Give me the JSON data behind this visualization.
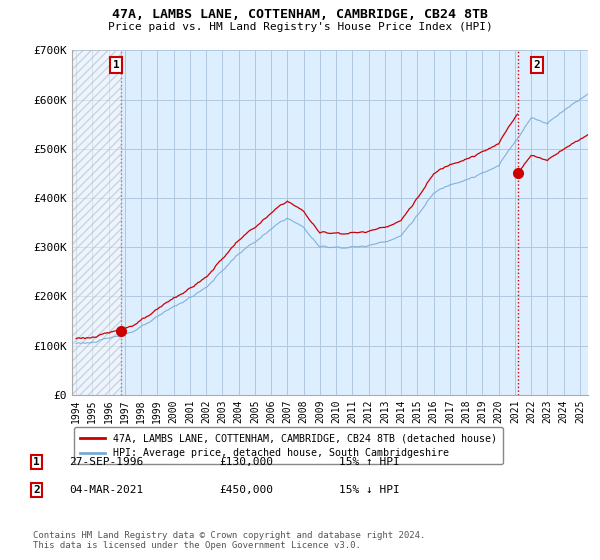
{
  "title_line1": "47A, LAMBS LANE, COTTENHAM, CAMBRIDGE, CB24 8TB",
  "title_line2": "Price paid vs. HM Land Registry's House Price Index (HPI)",
  "ylim": [
    0,
    700000
  ],
  "yticks": [
    0,
    100000,
    200000,
    300000,
    400000,
    500000,
    600000,
    700000
  ],
  "ytick_labels": [
    "£0",
    "£100K",
    "£200K",
    "£300K",
    "£400K",
    "£500K",
    "£600K",
    "£700K"
  ],
  "xlim_start": 1993.75,
  "xlim_end": 2025.5,
  "xticks": [
    1994,
    1995,
    1996,
    1997,
    1998,
    1999,
    2000,
    2001,
    2002,
    2003,
    2004,
    2005,
    2006,
    2007,
    2008,
    2009,
    2010,
    2011,
    2012,
    2013,
    2014,
    2015,
    2016,
    2017,
    2018,
    2019,
    2020,
    2021,
    2022,
    2023,
    2024,
    2025
  ],
  "hpi_color": "#7aaad4",
  "price_color": "#cc0000",
  "vline1_color": "#999999",
  "vline2_color": "#cc0000",
  "marker1_x": 1996.75,
  "marker1_y": 130000,
  "marker2_x": 2021.17,
  "marker2_y": 450000,
  "annotation1_label": "1",
  "annotation2_label": "2",
  "legend_label_price": "47A, LAMBS LANE, COTTENHAM, CAMBRIDGE, CB24 8TB (detached house)",
  "legend_label_hpi": "HPI: Average price, detached house, South Cambridgeshire",
  "table_row1": [
    "1",
    "27-SEP-1996",
    "£130,000",
    "15% ↑ HPI"
  ],
  "table_row2": [
    "2",
    "04-MAR-2021",
    "£450,000",
    "15% ↓ HPI"
  ],
  "footer": "Contains HM Land Registry data © Crown copyright and database right 2024.\nThis data is licensed under the Open Government Licence v3.0.",
  "background_color": "#ffffff",
  "plot_bg_color": "#ddeeff",
  "grid_color": "#b0c8e0"
}
